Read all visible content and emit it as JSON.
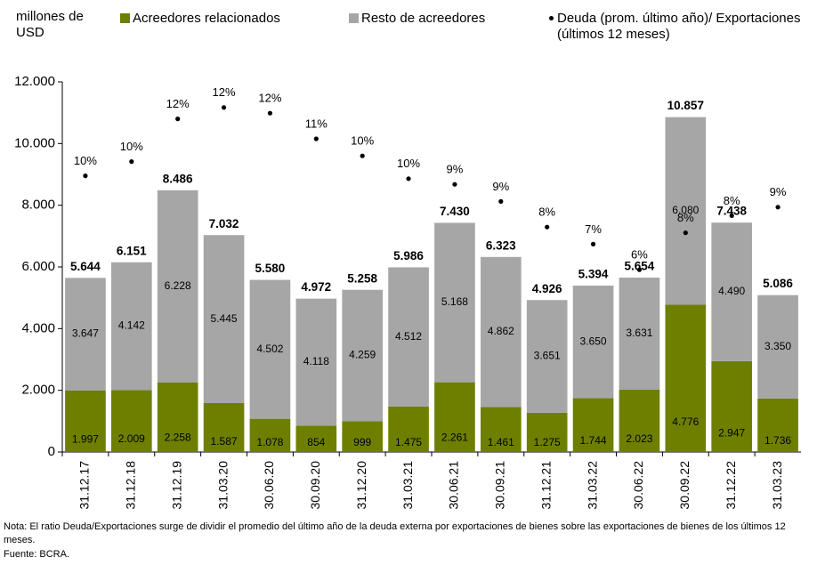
{
  "chart_data": {
    "type": "bar",
    "stacked": true,
    "y_label": "millones de USD",
    "categories": [
      "31.12.17",
      "31.12.18",
      "31.12.19",
      "31.03.20",
      "30.06.20",
      "30.09.20",
      "31.12.20",
      "31.03.21",
      "30.06.21",
      "30.09.21",
      "31.12.21",
      "31.03.22",
      "30.06.22",
      "30.09.22",
      "31.12.22",
      "31.03.23"
    ],
    "series": [
      {
        "name": "Acreedores relacionados",
        "color": "#6e7f00",
        "values": [
          1997,
          2009,
          2258,
          1587,
          1078,
          854,
          999,
          1475,
          2261,
          1461,
          1275,
          1744,
          2023,
          4776,
          2947,
          1736
        ],
        "value_labels": [
          "1.997",
          "2.009",
          "2.258",
          "1.587",
          "1.078",
          "854",
          "999",
          "1.475",
          "2.261",
          "1.461",
          "1.275",
          "1.744",
          "2.023",
          "4.776",
          "2.947",
          "1.736"
        ]
      },
      {
        "name": "Resto de acreedores",
        "color": "#a6a6a6",
        "values": [
          3647,
          4142,
          6228,
          5445,
          4502,
          4118,
          4259,
          4512,
          5168,
          4862,
          3651,
          3650,
          3631,
          6080,
          4490,
          3350
        ],
        "value_labels": [
          "3.647",
          "4.142",
          "6.228",
          "5.445",
          "4.502",
          "4.118",
          "4.259",
          "4.512",
          "5.168",
          "4.862",
          "3.651",
          "3.650",
          "3.631",
          "6.080",
          "4.490",
          "3.350"
        ]
      },
      {
        "name": "Deuda (prom. último año)/ Exportaciones (últimos 12 meses)",
        "type": "scatter",
        "axis": "y2",
        "color": "#000000",
        "values": [
          9.7,
          10.2,
          11.7,
          12.1,
          11.9,
          11.0,
          10.4,
          9.6,
          9.4,
          8.8,
          7.9,
          7.3,
          6.4,
          7.7,
          8.3,
          8.6
        ],
        "value_labels": [
          "10%",
          "10%",
          "12%",
          "12%",
          "12%",
          "11%",
          "10%",
          "10%",
          "9%",
          "9%",
          "8%",
          "7%",
          "6%",
          "8%",
          "8%",
          "9%"
        ]
      }
    ],
    "totals": {
      "values": [
        5644,
        6151,
        8486,
        7032,
        5580,
        4972,
        5258,
        5986,
        7430,
        6323,
        4926,
        5394,
        5654,
        10857,
        7438,
        5086
      ],
      "value_labels": [
        "5.644",
        "6.151",
        "8.486",
        "7.032",
        "5.580",
        "4.972",
        "5.258",
        "5.986",
        "7.430",
        "6.323",
        "4.926",
        "5.394",
        "5.654",
        "10.857",
        "7.438",
        "5.086"
      ]
    },
    "ylim": [
      0,
      12000
    ],
    "yticks": [
      0,
      {
        "value": 2000,
        "label": "2.000"
      },
      {
        "value": 4000,
        "label": "4.000"
      },
      {
        "value": 6000,
        "label": "6.000"
      },
      {
        "value": 8000,
        "label": "8.000"
      },
      {
        "value": 10000,
        "label": "10.000"
      },
      {
        "value": 12000,
        "label": "12.000"
      }
    ],
    "y2lim": [
      0,
      13
    ]
  },
  "note": "Nota: El ratio Deuda/Exportaciones surge de dividir el promedio del último año de la deuda externa por exportaciones de bienes sobre las exportaciones de bienes de los últimos 12 meses.",
  "source": "Fuente: BCRA."
}
